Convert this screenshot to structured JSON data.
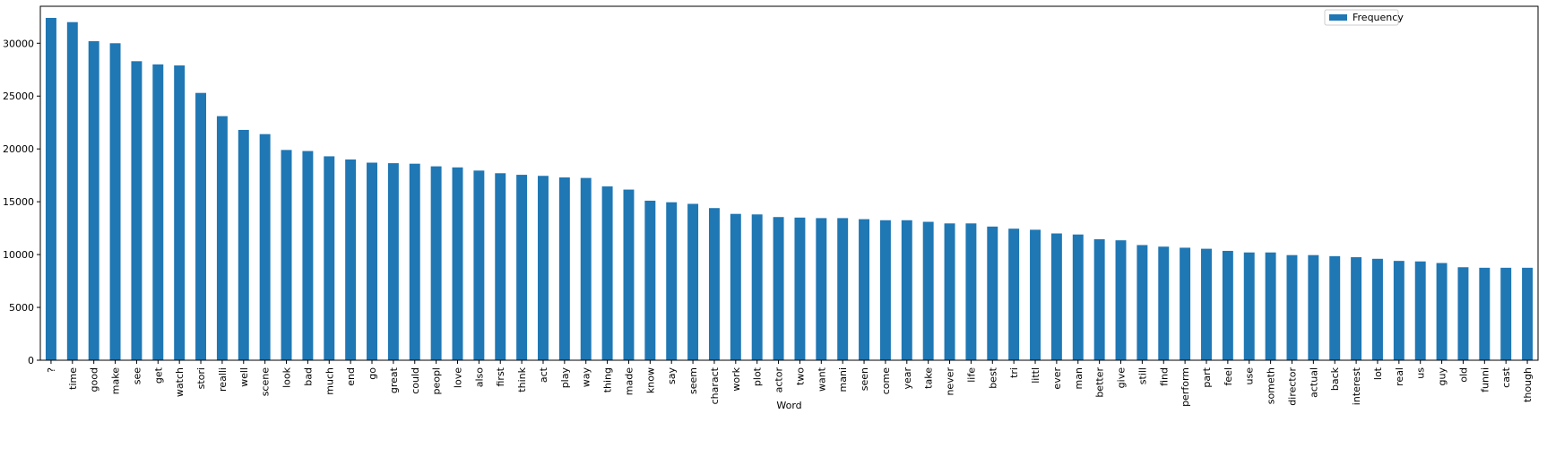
{
  "chart_data": {
    "type": "bar",
    "xlabel": "Word",
    "ylabel": "",
    "ylim": [
      0,
      33500
    ],
    "yticks": [
      0,
      5000,
      10000,
      15000,
      20000,
      25000,
      30000
    ],
    "legend": {
      "placement": "top-right",
      "entries": [
        "Frequency"
      ]
    },
    "grid": false,
    "bar_color": "#1f77b4",
    "categories": [
      "?",
      "time",
      "good",
      "make",
      "see",
      "get",
      "watch",
      "stori",
      "realli",
      "well",
      "scene",
      "look",
      "bad",
      "much",
      "end",
      "go",
      "great",
      "could",
      "peopl",
      "love",
      "also",
      "first",
      "think",
      "act",
      "play",
      "way",
      "thing",
      "made",
      "know",
      "say",
      "seem",
      "charact",
      "work",
      "plot",
      "actor",
      "two",
      "want",
      "mani",
      "seen",
      "come",
      "year",
      "take",
      "never",
      "life",
      "best",
      "tri",
      "littl",
      "ever",
      "man",
      "better",
      "give",
      "still",
      "find",
      "perform",
      "part",
      "feel",
      "use",
      "someth",
      "director",
      "actual",
      "back",
      "interest",
      "lot",
      "real",
      "us",
      "guy",
      "old",
      "funni",
      "cast",
      "though"
    ],
    "series": [
      {
        "name": "Frequency",
        "values": [
          32400,
          32000,
          30200,
          30000,
          28300,
          28000,
          27900,
          25300,
          23100,
          21800,
          21400,
          19900,
          19800,
          19300,
          19000,
          18700,
          18650,
          18600,
          18350,
          18250,
          17950,
          17700,
          17550,
          17450,
          17300,
          17250,
          16450,
          16150,
          15100,
          14950,
          14800,
          14400,
          13850,
          13800,
          13550,
          13500,
          13450,
          13450,
          13350,
          13250,
          13250,
          13100,
          12950,
          12950,
          12650,
          12450,
          12350,
          12000,
          11900,
          11450,
          11350,
          10900,
          10750,
          10650,
          10550,
          10350,
          10200,
          10200,
          9950,
          9950,
          9850,
          9750,
          9600,
          9400,
          9350,
          9200,
          8800,
          8750,
          8750,
          8750
        ]
      }
    ]
  }
}
